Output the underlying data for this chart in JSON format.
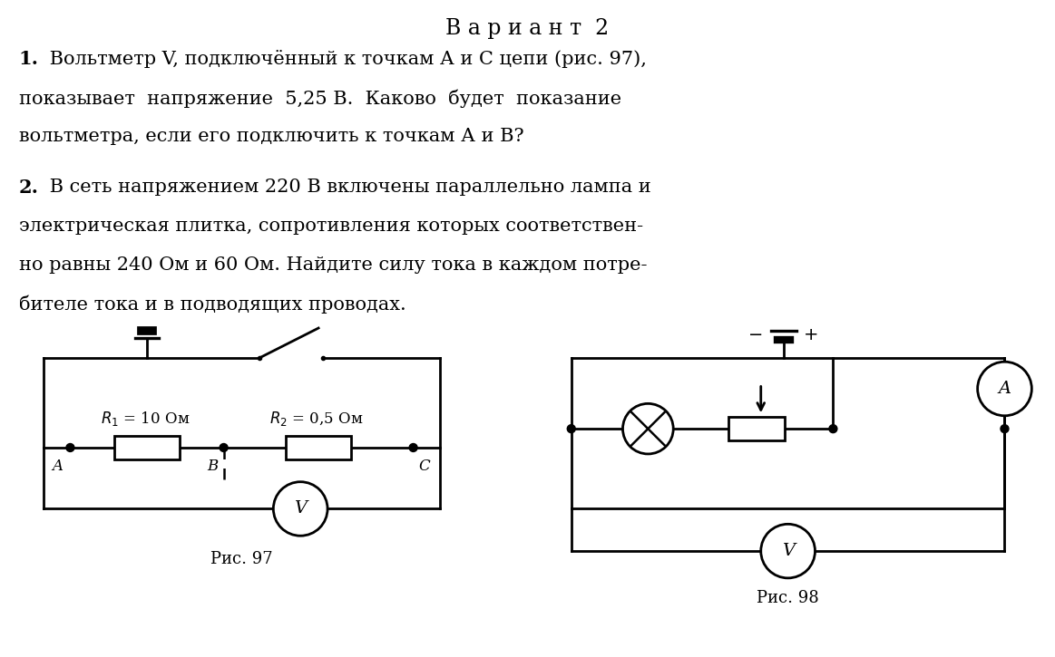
{
  "title": "В а р и а н т  2",
  "title_fontsize": 17,
  "bg_color": "#ffffff",
  "text_color": "#000000",
  "line_color": "#000000",
  "line_width": 2.0,
  "fs_body": 15,
  "fam": "serif",
  "line1_bold": "1.",
  "line1_rest": " Вольтметр V, подключённый к точкам А и С цепи (рис. 97),",
  "line2": "показывает  напряжение  5,25 В.  Каково  будет  показание",
  "line3": "вольтметра, если его подключить к точкам А и В?",
  "line4_bold": "2.",
  "line4_rest": " В сеть напряжением 220 В включены параллельно лампа и",
  "line5": "электрическая плитка, сопротивления которых соответствен-",
  "line6": "но равны 240 Ом и 60 Ом. Найдите силу тока в каждом потре-",
  "line7": "бителе тока и в подводящих проводах.",
  "fig97_label": "Рис. 97",
  "fig98_label": "Рис. 98",
  "r1_label": "$R_1$ = 10 Ом",
  "r2_label": "$R_2$ = 0,5 Ом",
  "point_A": "A",
  "point_B": "B",
  "point_C": "C"
}
